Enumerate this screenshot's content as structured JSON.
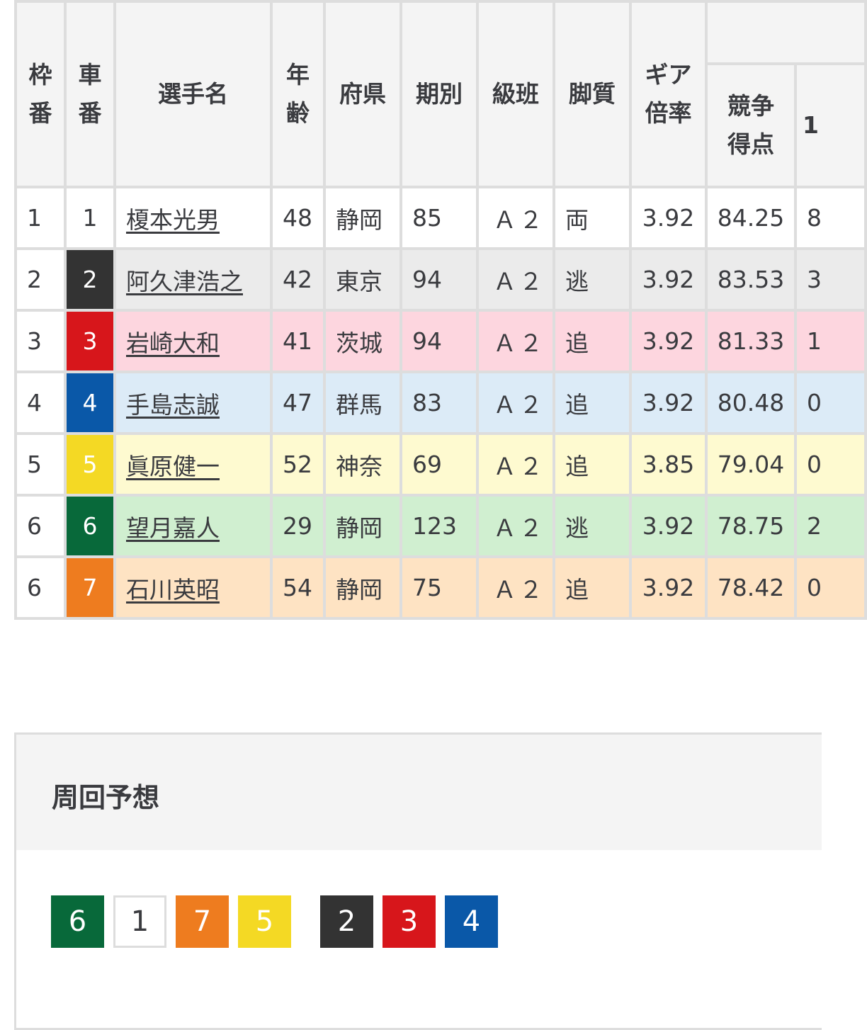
{
  "table": {
    "headers": {
      "waku": "枠\n番",
      "sha": "車\n番",
      "name": "選手名",
      "age": "年\n齢",
      "pref": "府県",
      "term": "期別",
      "class": "級班",
      "style": "脚質",
      "gear": "ギア\n倍率",
      "score": "競争\n得点",
      "next": "1"
    },
    "rows": [
      {
        "waku": "1",
        "sha": "1",
        "name": "榎本光男",
        "age": "48",
        "pref": "静岡",
        "term": "85",
        "class": "Ａ２",
        "style": "両",
        "gear": "3.92",
        "score": "84.25",
        "next": "8",
        "bg": "#ffffff",
        "car": "#ffffff",
        "carText": "#3a3b3f"
      },
      {
        "waku": "2",
        "sha": "2",
        "name": "阿久津浩之",
        "age": "42",
        "pref": "東京",
        "term": "94",
        "class": "Ａ２",
        "style": "逃",
        "gear": "3.92",
        "score": "83.53",
        "next": "3",
        "bg": "#ebebeb",
        "car": "#333333",
        "carText": "#ffffff"
      },
      {
        "waku": "3",
        "sha": "3",
        "name": "岩崎大和",
        "age": "41",
        "pref": "茨城",
        "term": "94",
        "class": "Ａ２",
        "style": "追",
        "gear": "3.92",
        "score": "81.33",
        "next": "1",
        "bg": "#fdd6df",
        "car": "#d7161b",
        "carText": "#ffffff"
      },
      {
        "waku": "4",
        "sha": "4",
        "name": "手島志誠",
        "age": "47",
        "pref": "群馬",
        "term": "83",
        "class": "Ａ２",
        "style": "追",
        "gear": "3.92",
        "score": "80.48",
        "next": "0",
        "bg": "#dcebf7",
        "car": "#0a58a8",
        "carText": "#ffffff"
      },
      {
        "waku": "5",
        "sha": "5",
        "name": "眞原健一",
        "age": "52",
        "pref": "神奈",
        "term": "69",
        "class": "Ａ２",
        "style": "追",
        "gear": "3.85",
        "score": "79.04",
        "next": "0",
        "bg": "#fefad0",
        "car": "#f4d924",
        "carText": "#ffffff"
      },
      {
        "waku": "6",
        "sha": "6",
        "name": "望月嘉人",
        "age": "29",
        "pref": "静岡",
        "term": "123",
        "class": "Ａ２",
        "style": "逃",
        "gear": "3.92",
        "score": "78.75",
        "next": "2",
        "bg": "#d0efd0",
        "car": "#08693a",
        "carText": "#ffffff"
      },
      {
        "waku": "6",
        "sha": "7",
        "name": "石川英昭",
        "age": "54",
        "pref": "静岡",
        "term": "75",
        "class": "Ａ２",
        "style": "追",
        "gear": "3.92",
        "score": "78.42",
        "next": "0",
        "bg": "#fee3c3",
        "car": "#ee7c1f",
        "carText": "#ffffff"
      }
    ]
  },
  "prediction": {
    "title": "周回予想",
    "badges": [
      {
        "num": "6",
        "color": "#08693a"
      },
      {
        "num": "1",
        "color": "#ffffff"
      },
      {
        "num": "7",
        "color": "#ee7c1f"
      },
      {
        "num": "5",
        "color": "#f4d924"
      },
      {
        "gap": true
      },
      {
        "num": "2",
        "color": "#333333"
      },
      {
        "num": "3",
        "color": "#d7161b"
      },
      {
        "num": "4",
        "color": "#0a58a8"
      }
    ]
  }
}
